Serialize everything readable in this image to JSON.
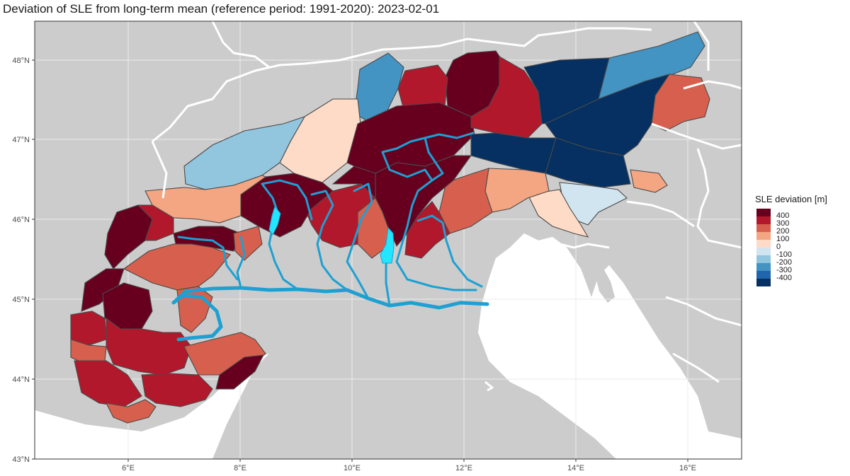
{
  "title": "Deviation of SLE from long-term mean (reference period: 1991-2020): 2023-02-01",
  "axes": {
    "lat_ticks": [
      "48°N",
      "47°N",
      "46°N",
      "45°N",
      "44°N",
      "43°N"
    ],
    "lon_ticks": [
      "6°E",
      "8°E",
      "10°E",
      "12°E",
      "14°E",
      "16°E"
    ]
  },
  "legend": {
    "title": "SLE deviation [m]",
    "labels": [
      "400",
      "300",
      "200",
      "100",
      "0",
      "-100",
      "-200",
      "-300",
      "-400"
    ],
    "colors": [
      "#67001f",
      "#b2182b",
      "#d6604d",
      "#f4a582",
      "#fddbc7",
      "#d1e5f0",
      "#92c5de",
      "#4393c3",
      "#2166ac",
      "#053061"
    ]
  },
  "colors": {
    "land": "#cccccc",
    "water": "#ffffff",
    "river": "#1da0d2",
    "lake": "#22e6ff"
  }
}
